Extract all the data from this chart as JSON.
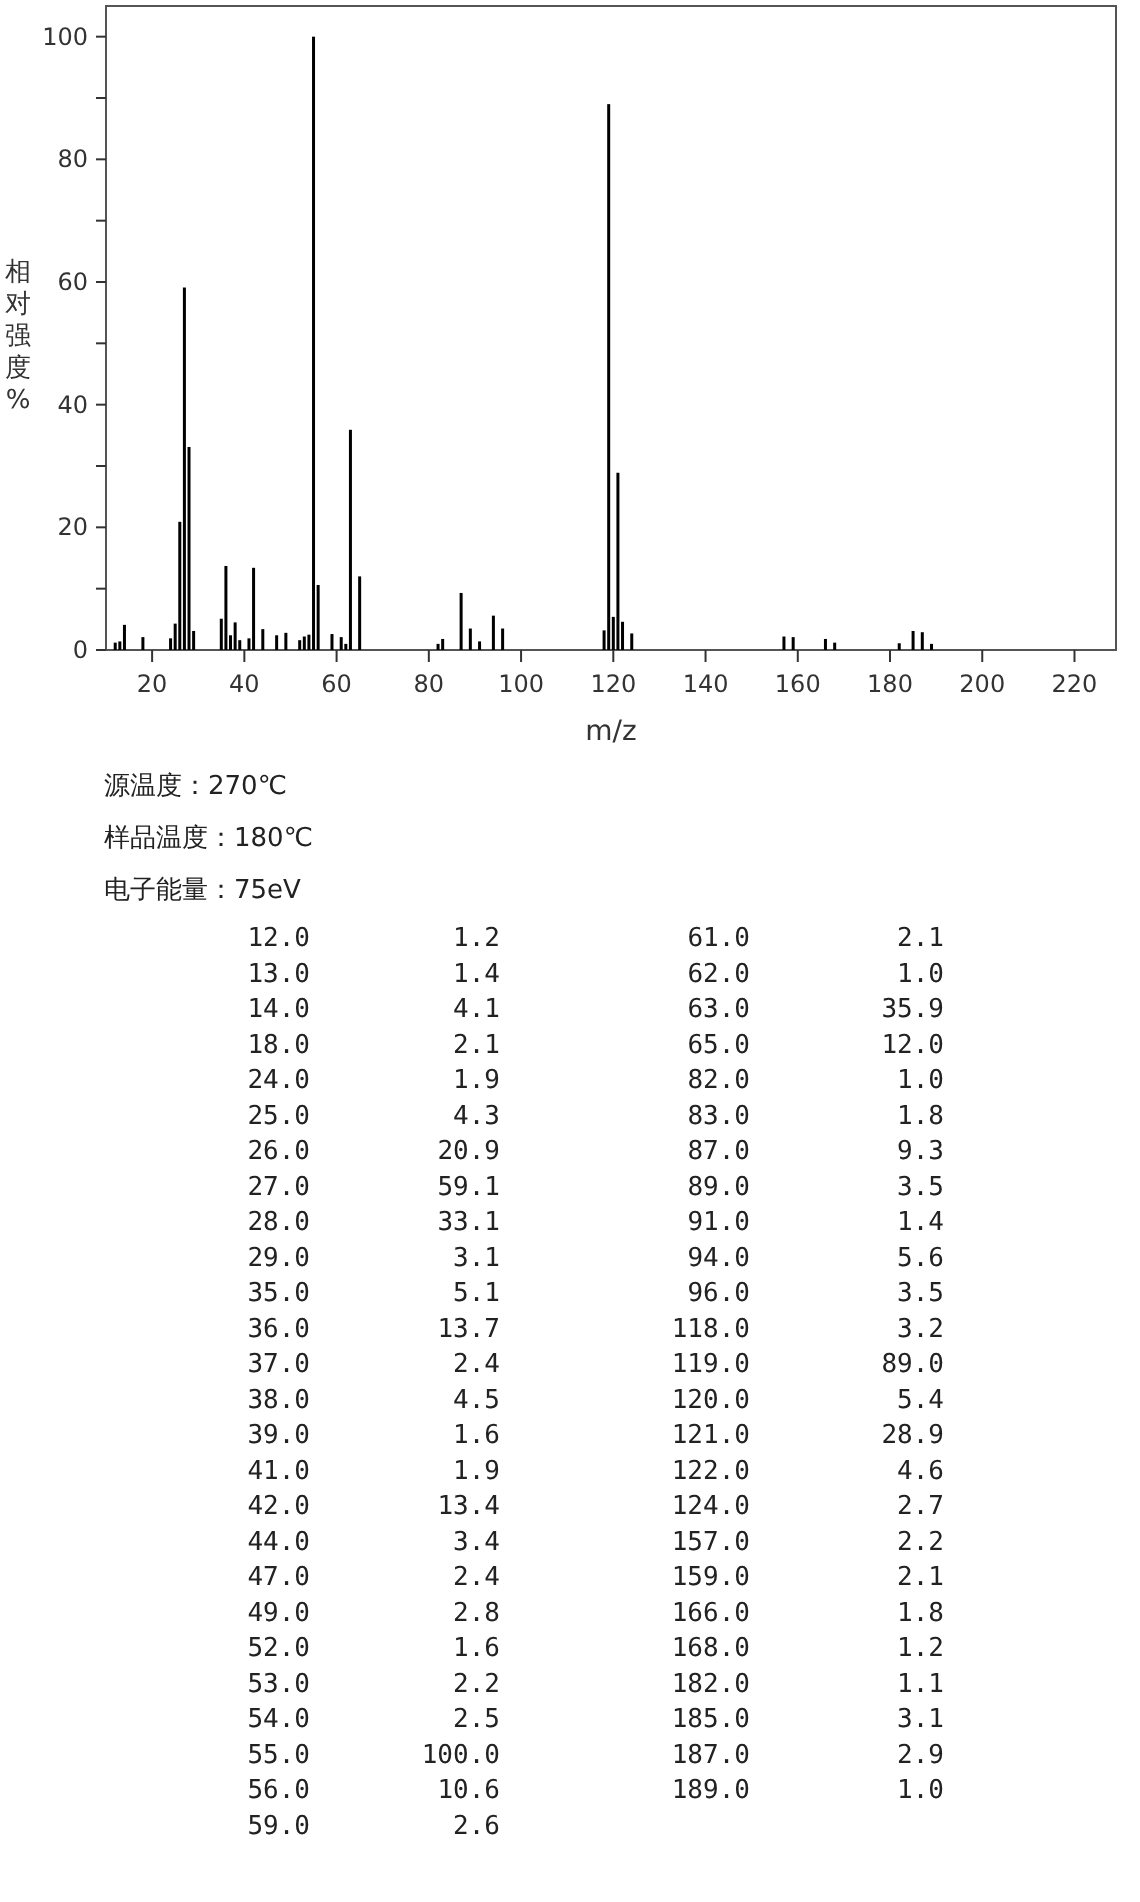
{
  "chart_data": [
    {
      "type": "bar",
      "xlabel": "m/z",
      "ylabel": "相对强度%",
      "color": "#000000",
      "x": [
        12,
        13,
        14,
        18,
        24,
        25,
        26,
        27,
        28,
        29,
        35,
        36,
        37,
        38,
        39,
        41,
        42,
        44,
        47,
        49,
        52,
        53,
        54,
        55,
        56,
        59,
        61,
        62,
        63,
        65,
        82,
        83,
        87,
        89,
        91,
        94,
        96,
        118,
        119,
        120,
        121,
        122,
        124,
        157,
        159,
        166,
        168,
        182,
        185,
        187,
        189
      ],
      "values": [
        1.2,
        1.4,
        4.1,
        2.1,
        1.9,
        4.3,
        20.9,
        59.1,
        33.1,
        3.1,
        5.1,
        13.7,
        2.4,
        4.5,
        1.6,
        1.9,
        13.4,
        3.4,
        2.4,
        2.8,
        1.6,
        2.2,
        2.5,
        100.0,
        10.6,
        2.6,
        2.1,
        1.0,
        35.9,
        12.0,
        1.0,
        1.8,
        9.3,
        3.5,
        1.4,
        5.6,
        3.5,
        3.2,
        89.0,
        5.4,
        28.9,
        4.6,
        2.7,
        2.2,
        2.1,
        1.8,
        1.2,
        1.1,
        3.1,
        2.9,
        1.0
      ],
      "xlim": [
        10,
        229
      ],
      "ylim": [
        0,
        105
      ],
      "xticks": [
        20,
        40,
        60,
        80,
        100,
        120,
        140,
        160,
        180,
        200,
        220
      ],
      "yticks": [
        0,
        {
          "value": 10,
          "label": null
        },
        20,
        {
          "value": 30,
          "label": null
        },
        40,
        {
          "value": 50,
          "label": null
        },
        60,
        {
          "value": 70,
          "label": null
        },
        80,
        {
          "value": 90,
          "label": null
        },
        100
      ],
      "annotations": [
        "源温度：270℃",
        "样品温度：180℃",
        "电子能量：75eV"
      ]
    },
    {
      "type": "other",
      "annotations": [
        "12.0",
        "1.2",
        "13.0",
        "1.4",
        "14.0",
        "4.1",
        "18.0",
        "2.1",
        "24.0",
        "1.9",
        "25.0",
        "4.3",
        "26.0",
        "20.9",
        "27.0",
        "59.1",
        "28.0",
        "33.1",
        "29.0",
        "3.1",
        "35.0",
        "5.1",
        "36.0",
        "13.7",
        "37.0",
        "2.4",
        "38.0",
        "4.5",
        "39.0",
        "1.6",
        "41.0",
        "1.9",
        "42.0",
        "13.4",
        "44.0",
        "3.4",
        "47.0",
        "2.4",
        "49.0",
        "2.8",
        "52.0",
        "1.6",
        "53.0",
        "2.2",
        "54.0",
        "2.5",
        "55.0",
        "100.0",
        "56.0",
        "10.6",
        "59.0",
        "2.6",
        "61.0",
        "2.1",
        "62.0",
        "1.0",
        "63.0",
        "35.9",
        "65.0",
        "12.0",
        "82.0",
        "1.0",
        "83.0",
        "1.8",
        "87.0",
        "9.3",
        "89.0",
        "3.5",
        "91.0",
        "1.4",
        "94.0",
        "5.6",
        "96.0",
        "3.5",
        "118.0",
        "3.2",
        "119.0",
        "89.0",
        "120.0",
        "5.4",
        "121.0",
        "28.9",
        "122.0",
        "4.6",
        "124.0",
        "2.7",
        "157.0",
        "2.2",
        "159.0",
        "2.1",
        "166.0",
        "1.8",
        "168.0",
        "1.2",
        "182.0",
        "1.1",
        "185.0",
        "3.1",
        "187.0",
        "2.9",
        "189.0",
        "1.0"
      ]
    }
  ]
}
